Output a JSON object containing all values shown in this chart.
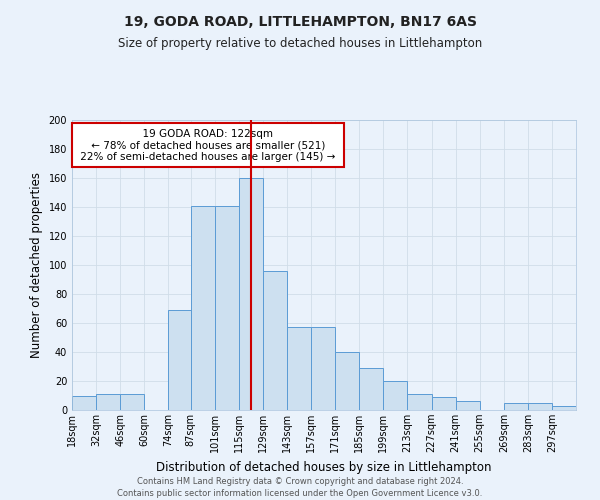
{
  "title": "19, GODA ROAD, LITTLEHAMPTON, BN17 6AS",
  "subtitle": "Size of property relative to detached houses in Littlehampton",
  "xlabel": "Distribution of detached houses by size in Littlehampton",
  "ylabel": "Number of detached properties",
  "bin_labels": [
    "18sqm",
    "32sqm",
    "46sqm",
    "60sqm",
    "74sqm",
    "87sqm",
    "101sqm",
    "115sqm",
    "129sqm",
    "143sqm",
    "157sqm",
    "171sqm",
    "185sqm",
    "199sqm",
    "213sqm",
    "227sqm",
    "241sqm",
    "255sqm",
    "269sqm",
    "283sqm",
    "297sqm"
  ],
  "bar_heights": [
    10,
    11,
    11,
    0,
    69,
    141,
    141,
    160,
    96,
    57,
    57,
    40,
    29,
    20,
    11,
    9,
    6,
    0,
    5,
    5,
    3
  ],
  "bin_edges": [
    18,
    32,
    46,
    60,
    74,
    87,
    101,
    115,
    129,
    143,
    157,
    171,
    185,
    199,
    213,
    227,
    241,
    255,
    269,
    283,
    297,
    311
  ],
  "marker_value": 122,
  "bar_color": "#cde0f0",
  "bar_edge_color": "#5b9bd5",
  "marker_color": "#cc0000",
  "annotation_title": "19 GODA ROAD: 122sqm",
  "annotation_line1": "← 78% of detached houses are smaller (521)",
  "annotation_line2": "22% of semi-detached houses are larger (145) →",
  "annotation_box_color": "#ffffff",
  "annotation_box_edge": "#cc0000",
  "ylim": [
    0,
    200
  ],
  "yticks": [
    0,
    20,
    40,
    60,
    80,
    100,
    120,
    140,
    160,
    180,
    200
  ],
  "footer1": "Contains HM Land Registry data © Crown copyright and database right 2024.",
  "footer2": "Contains public sector information licensed under the Open Government Licence v3.0.",
  "bg_color": "#eaf2fb",
  "grid_color": "#d0dde8",
  "title_fontsize": 10,
  "subtitle_fontsize": 8.5,
  "axis_label_fontsize": 8.5,
  "tick_fontsize": 7,
  "footer_fontsize": 6,
  "annotation_fontsize": 7.5
}
